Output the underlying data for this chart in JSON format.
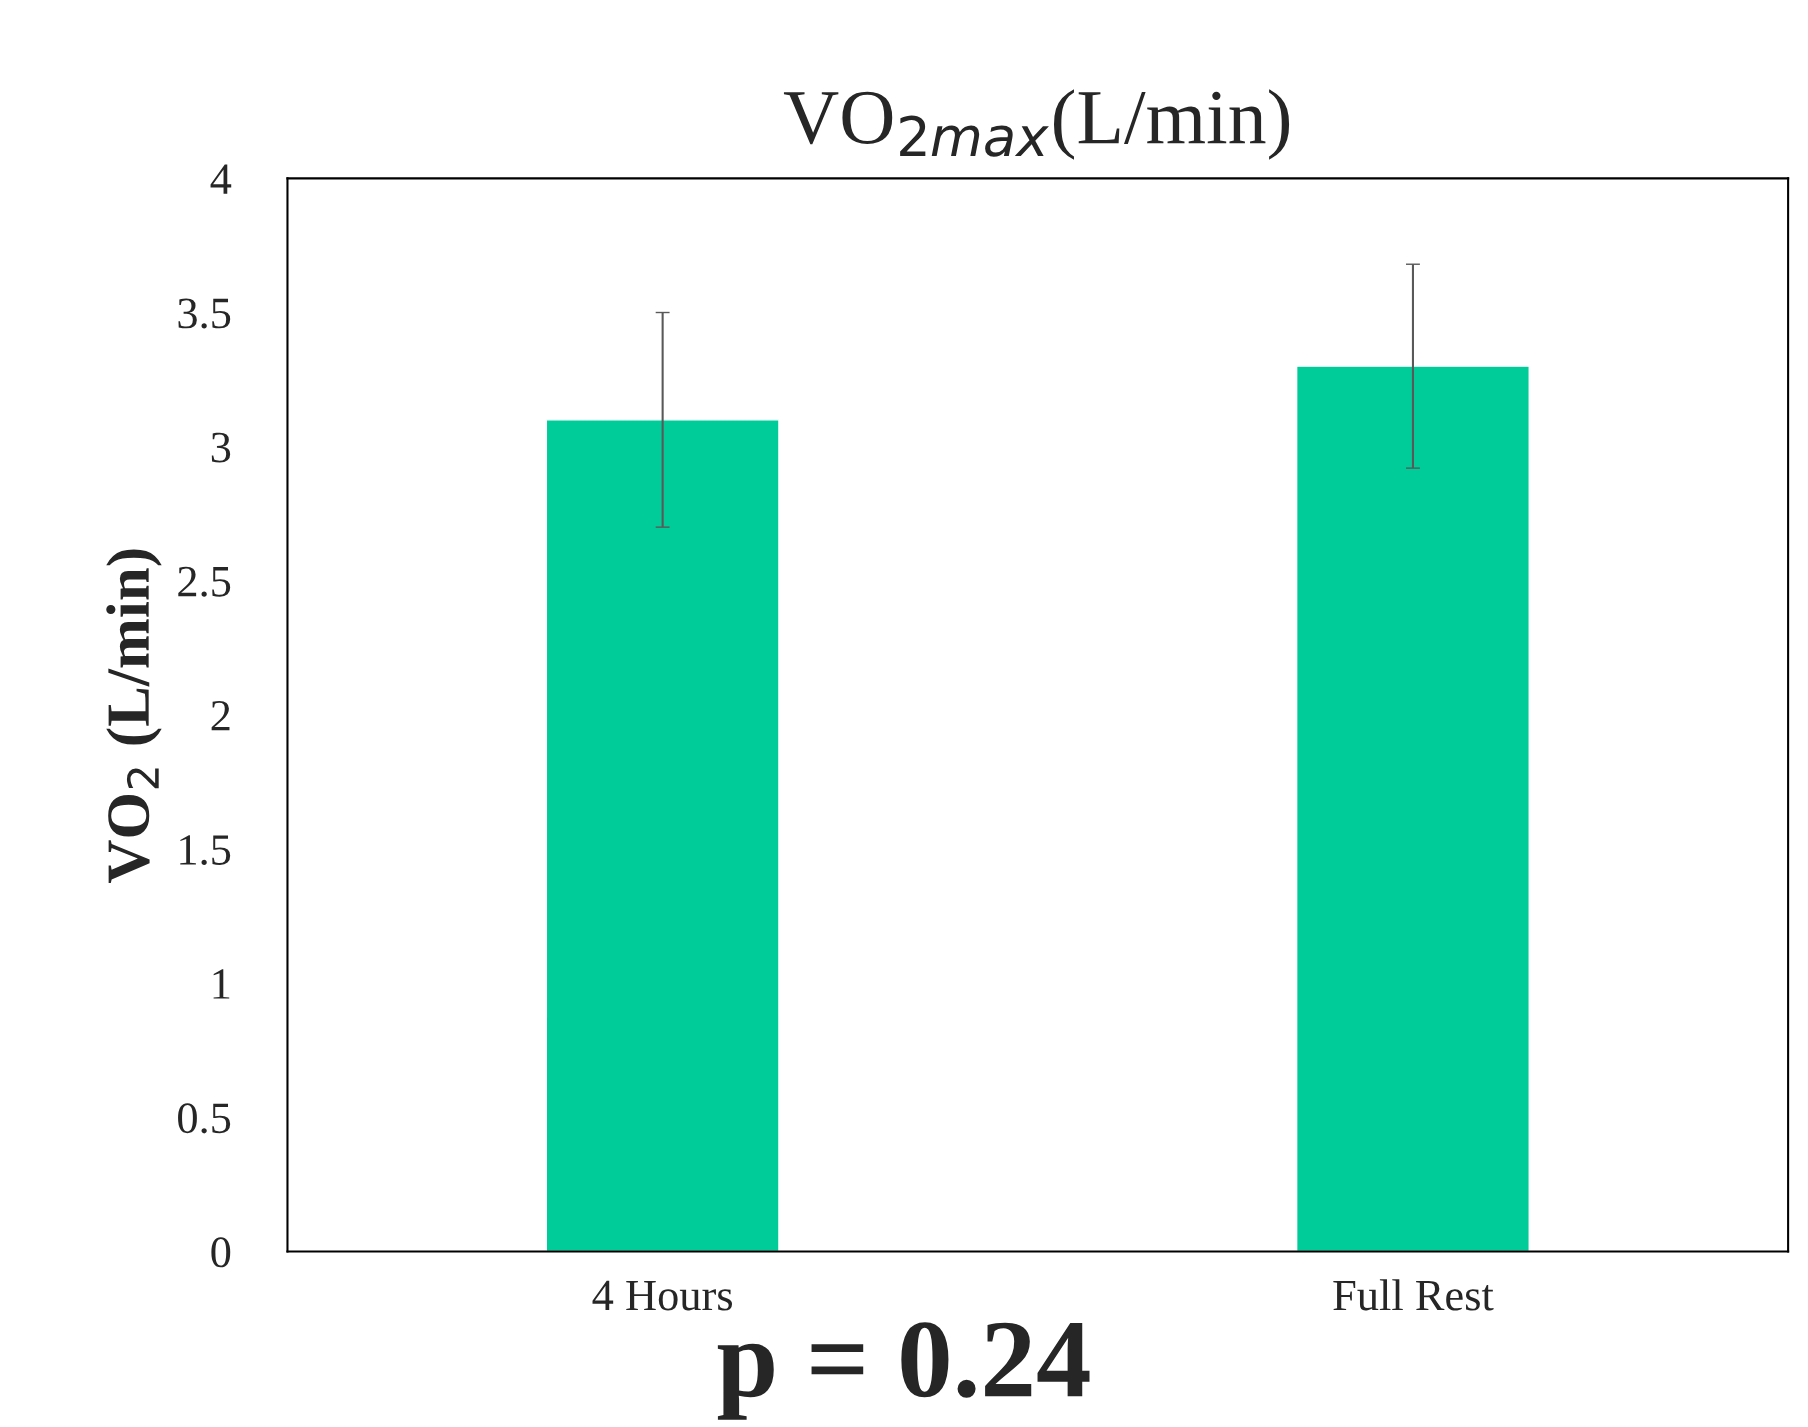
{
  "chart_data": {
    "type": "bar",
    "title": "VO$_{2max}$(L/min)",
    "ylabel": "VO$_{2}$ (L/min)",
    "categories": [
      "4 Hours",
      "Full Rest"
    ],
    "values": [
      3.1,
      3.3
    ],
    "errors": [
      0.4,
      0.38
    ],
    "color": "#00cc99",
    "ylim": [
      0,
      4
    ],
    "yticks": [
      0,
      0.5,
      1,
      1.5,
      2,
      2.5,
      3,
      3.5,
      4
    ],
    "grid": false,
    "annotations": [
      "p = 0.24"
    ]
  }
}
